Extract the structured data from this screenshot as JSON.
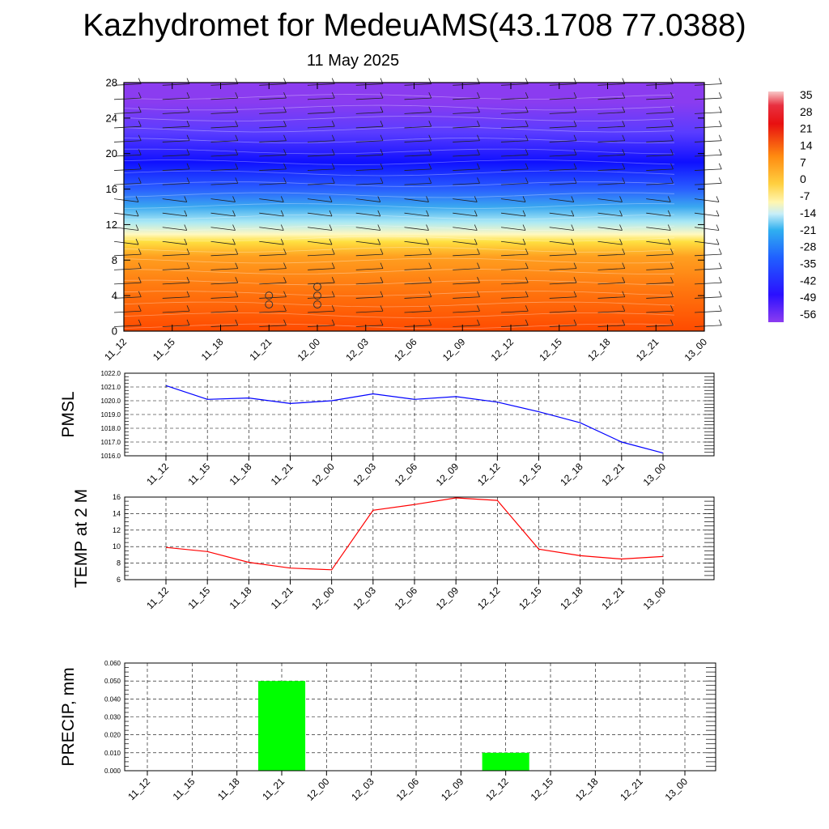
{
  "header": {
    "title": "Kazhydromet for MedeuAMS(43.1708 77.0388)",
    "subtitle": "11 May 2025"
  },
  "colorbar": {
    "labels": [
      "35",
      "28",
      "21",
      "14",
      "7",
      "0",
      "-7",
      "-14",
      "-21",
      "-28",
      "-35",
      "-42",
      "-49",
      "-56"
    ],
    "colors": [
      "#f6b9b9",
      "#e00000",
      "#ff5a00",
      "#ff9a20",
      "#ffd84a",
      "#fff2a0",
      "#a8e6f5",
      "#3fb0f0",
      "#2060ff",
      "#1010ff",
      "#7a30ff"
    ]
  },
  "chart_data": [
    {
      "type": "heatmap",
      "description_label": "",
      "x_categories": [
        "11_12",
        "11_15",
        "11_18",
        "11_21",
        "12_00",
        "12_03",
        "12_06",
        "12_09",
        "12_12",
        "12_15",
        "12_18",
        "12_21",
        "13_00"
      ],
      "y_ticks": [
        "0",
        "4",
        "8",
        "12",
        "16",
        "20",
        "24",
        "28"
      ],
      "ylim": [
        0,
        28
      ],
      "color_scale": [
        -56,
        35
      ],
      "precip_markers": [
        {
          "x": "11_21",
          "levels": [
            3,
            4
          ]
        },
        {
          "x": "12_00",
          "levels": [
            3,
            4,
            5
          ]
        }
      ]
    },
    {
      "type": "line",
      "ylabel": "PMSL",
      "categories": [
        "11_12",
        "11_15",
        "11_18",
        "11_21",
        "12_00",
        "12_03",
        "12_06",
        "12_09",
        "12_12",
        "12_15",
        "12_18",
        "12_21",
        "13_00"
      ],
      "series": [
        {
          "values": [
            1021.1,
            1020.1,
            1020.2,
            1019.8,
            1020.0,
            1020.5,
            1020.1,
            1020.3,
            1019.9,
            1019.2,
            1018.4,
            1017.0,
            1016.2
          ]
        }
      ],
      "y_ticks": [
        "1022.0",
        "1021.0",
        "1020.0",
        "1019.0",
        "1018.0",
        "1017.0",
        "1016.0"
      ],
      "ylim": [
        1016.0,
        1022.0
      ],
      "color": "#0000ff",
      "grid": true
    },
    {
      "type": "line",
      "ylabel": "TEMP at 2 M",
      "categories": [
        "11_12",
        "11_15",
        "11_18",
        "11_21",
        "12_00",
        "12_03",
        "12_06",
        "12_09",
        "12_12",
        "12_15",
        "12_18",
        "12_21",
        "13_00"
      ],
      "series": [
        {
          "values": [
            9.9,
            9.4,
            8.1,
            7.4,
            7.2,
            14.4,
            15.1,
            15.9,
            15.6,
            9.7,
            8.9,
            8.5,
            8.8
          ]
        }
      ],
      "y_ticks": [
        "16",
        "14",
        "12",
        "10",
        "8",
        "6"
      ],
      "ylim": [
        6,
        16
      ],
      "color": "#ff0000",
      "grid": true
    },
    {
      "type": "bar",
      "ylabel": "PRECIP, mm",
      "categories": [
        "11_12",
        "11_15",
        "11_18",
        "11_21",
        "12_00",
        "12_03",
        "12_06",
        "12_09",
        "12_12",
        "12_15",
        "12_18",
        "12_21",
        "13_00"
      ],
      "values": [
        0,
        0,
        0,
        0.05,
        0,
        0,
        0,
        0,
        0.01,
        0,
        0,
        0,
        0
      ],
      "y_ticks": [
        "0.060",
        "0.050",
        "0.040",
        "0.030",
        "0.020",
        "0.010",
        "0.000"
      ],
      "ylim": [
        0,
        0.06
      ],
      "color": "#00ff00",
      "grid": true
    }
  ]
}
